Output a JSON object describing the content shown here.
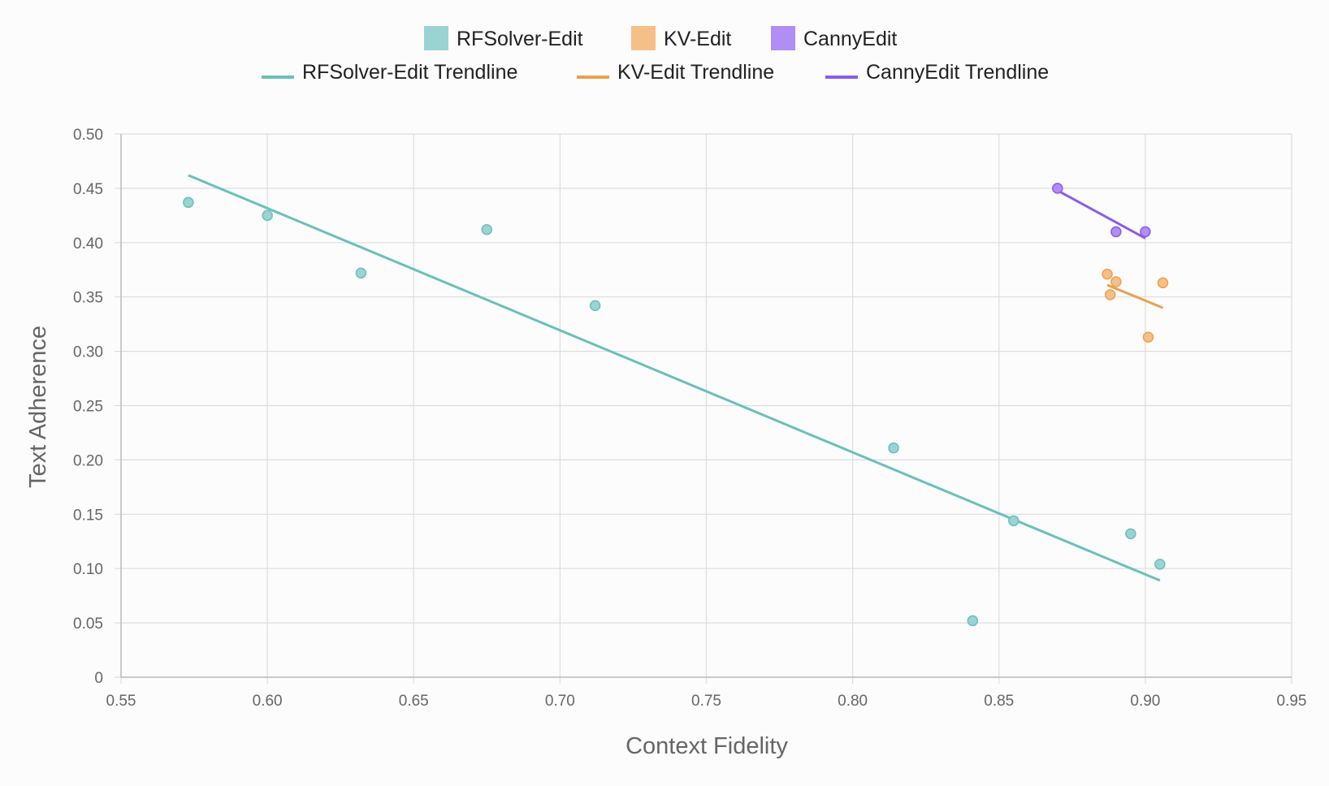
{
  "chart_data": {
    "type": "scatter",
    "xlabel": "Context Fidelity",
    "ylabel": "Text Adherence",
    "xlim": [
      0.55,
      0.95
    ],
    "ylim": [
      0,
      0.5
    ],
    "x_ticks": [
      0.55,
      0.6,
      0.65,
      0.7,
      0.75,
      0.8,
      0.85,
      0.9,
      0.95
    ],
    "x_tick_labels": [
      "0.55",
      "0.60",
      "0.65",
      "0.70",
      "0.75",
      "0.80",
      "0.85",
      "0.90",
      "0.95"
    ],
    "y_ticks": [
      0,
      0.05,
      0.1,
      0.15,
      0.2,
      0.25,
      0.3,
      0.35,
      0.4,
      0.45,
      0.5
    ],
    "y_tick_labels": [
      "0",
      "0.05",
      "0.10",
      "0.15",
      "0.20",
      "0.25",
      "0.30",
      "0.35",
      "0.40",
      "0.45",
      "0.50"
    ],
    "grid": true,
    "legend_position": "top-center",
    "series": [
      {
        "name": "RFSolver-Edit",
        "color": "#6bbfbf",
        "fill": "#9bd3d3",
        "points": [
          {
            "x": 0.573,
            "y": 0.437
          },
          {
            "x": 0.6,
            "y": 0.425
          },
          {
            "x": 0.632,
            "y": 0.372
          },
          {
            "x": 0.675,
            "y": 0.412
          },
          {
            "x": 0.712,
            "y": 0.342
          },
          {
            "x": 0.814,
            "y": 0.211
          },
          {
            "x": 0.841,
            "y": 0.052
          },
          {
            "x": 0.855,
            "y": 0.144
          },
          {
            "x": 0.895,
            "y": 0.132
          },
          {
            "x": 0.905,
            "y": 0.104
          }
        ]
      },
      {
        "name": "KV-Edit",
        "color": "#f0a050",
        "fill": "#f5bf88",
        "points": [
          {
            "x": 0.887,
            "y": 0.371
          },
          {
            "x": 0.888,
            "y": 0.352
          },
          {
            "x": 0.89,
            "y": 0.364
          },
          {
            "x": 0.901,
            "y": 0.313
          },
          {
            "x": 0.906,
            "y": 0.363
          }
        ]
      },
      {
        "name": "CannyEdit",
        "color": "#8b5ce8",
        "fill": "#b08ef5",
        "points": [
          {
            "x": 0.87,
            "y": 0.45
          },
          {
            "x": 0.89,
            "y": 0.41
          },
          {
            "x": 0.9,
            "y": 0.41
          }
        ]
      }
    ],
    "trendlines": [
      {
        "name": "RFSolver-Edit Trendline",
        "color": "#6bbfbf",
        "x": [
          0.573,
          0.905
        ],
        "y": [
          0.462,
          0.089
        ]
      },
      {
        "name": "KV-Edit Trendline",
        "color": "#eba04f",
        "x": [
          0.887,
          0.906
        ],
        "y": [
          0.361,
          0.34
        ]
      },
      {
        "name": "CannyEdit Trendline",
        "color": "#8b5ce8",
        "x": [
          0.87,
          0.9
        ],
        "y": [
          0.448,
          0.404
        ]
      }
    ]
  }
}
